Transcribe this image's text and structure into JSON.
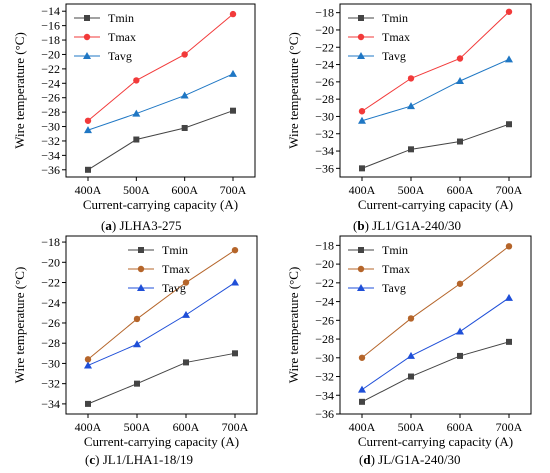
{
  "chart_data": [
    {
      "type": "line",
      "panel_letter": "a",
      "caption": "JLHA3-275",
      "categories": [
        "400A",
        "500A",
        "600A",
        "700A"
      ],
      "xlabel": "Current-carrying capacity (A)",
      "ylabel": "Wire temperature (°C)",
      "ylim": [
        -37,
        -13
      ],
      "yticks": [
        -36,
        -34,
        -32,
        -30,
        -28,
        -26,
        -24,
        -22,
        -20,
        -18,
        -16,
        -14
      ],
      "grid": false,
      "legend": "top-left",
      "series": [
        {
          "name": "Tmin",
          "color": "#444444",
          "marker": "square",
          "values": [
            -36.0,
            -31.8,
            -30.2,
            -27.8
          ]
        },
        {
          "name": "Tmax",
          "color": "#f23a3a",
          "marker": "circle",
          "values": [
            -29.2,
            -23.6,
            -20.0,
            -14.4
          ]
        },
        {
          "name": "Tavg",
          "color": "#1f77c4",
          "marker": "triangle",
          "values": [
            -30.5,
            -28.2,
            -25.7,
            -22.7
          ]
        }
      ]
    },
    {
      "type": "line",
      "panel_letter": "b",
      "caption": "JL1/G1A-240/30",
      "categories": [
        "400A",
        "500A",
        "600A",
        "700A"
      ],
      "xlabel": "Current-carrying capacity (A)",
      "ylabel": "Wire temperature (°C)",
      "ylim": [
        -37,
        -17
      ],
      "yticks": [
        -36,
        -34,
        -32,
        -30,
        -28,
        -26,
        -24,
        -22,
        -20,
        -18
      ],
      "grid": false,
      "legend": "top-left",
      "series": [
        {
          "name": "Tmin",
          "color": "#444444",
          "marker": "square",
          "values": [
            -36.0,
            -33.8,
            -32.9,
            -30.9
          ]
        },
        {
          "name": "Tmax",
          "color": "#f23a3a",
          "marker": "circle",
          "values": [
            -29.4,
            -25.6,
            -23.3,
            -17.9
          ]
        },
        {
          "name": "Tavg",
          "color": "#1f77c4",
          "marker": "triangle",
          "values": [
            -30.5,
            -28.8,
            -25.9,
            -23.4
          ]
        }
      ]
    },
    {
      "type": "line",
      "panel_letter": "c",
      "caption": "JL1/LHA1-18/19",
      "categories": [
        "400A",
        "500A",
        "600A",
        "700A"
      ],
      "xlabel": "Current-carrying capacity (A)",
      "ylabel": "Wire temperature (°C)",
      "ylim": [
        -35,
        -17.4
      ],
      "yticks": [
        -34,
        -32,
        -30,
        -28,
        -26,
        -24,
        -22,
        -20,
        -18
      ],
      "grid": false,
      "legend": "top-right",
      "series": [
        {
          "name": "Tmin",
          "color": "#444444",
          "marker": "square",
          "values": [
            -34.0,
            -32.0,
            -29.9,
            -29.0
          ]
        },
        {
          "name": "Tmax",
          "color": "#b5652a",
          "marker": "circle",
          "values": [
            -29.6,
            -25.6,
            -22.0,
            -18.8
          ]
        },
        {
          "name": "Tavg",
          "color": "#1f4fd8",
          "marker": "triangle",
          "values": [
            -30.2,
            -28.1,
            -25.2,
            -22.0
          ]
        }
      ]
    },
    {
      "type": "line",
      "panel_letter": "d",
      "caption": "JL/G1A-240/30",
      "categories": [
        "400A",
        "500A",
        "600A",
        "700A"
      ],
      "xlabel": "Current-carrying capacity (A)",
      "ylabel": "Wire temperature (°C)",
      "ylim": [
        -36,
        -17
      ],
      "yticks": [
        -36,
        -34,
        -32,
        -30,
        -28,
        -26,
        -24,
        -22,
        -20,
        -18
      ],
      "grid": false,
      "legend": "top-left",
      "series": [
        {
          "name": "Tmin",
          "color": "#444444",
          "marker": "square",
          "values": [
            -34.7,
            -32.0,
            -29.8,
            -28.3
          ]
        },
        {
          "name": "Tmax",
          "color": "#b5652a",
          "marker": "circle",
          "values": [
            -30.0,
            -25.8,
            -22.1,
            -18.1
          ]
        },
        {
          "name": "Tavg",
          "color": "#1f4fd8",
          "marker": "triangle",
          "values": [
            -33.4,
            -29.8,
            -27.2,
            -23.6
          ]
        }
      ]
    }
  ]
}
